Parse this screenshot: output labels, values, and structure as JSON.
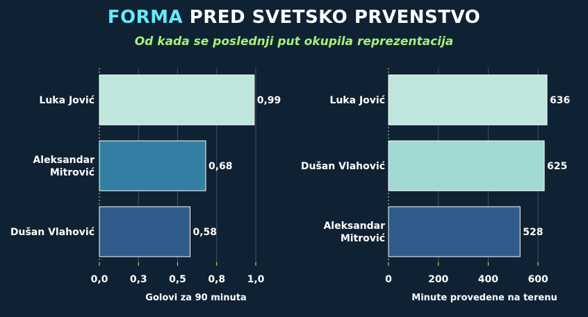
{
  "header": {
    "title_highlight": "FORMA",
    "title_rest": " PRED SVETSKO PRVENSTVO",
    "subtitle": "Od kada se poslednji put okupila reprezentacija"
  },
  "chart_data": [
    {
      "type": "bar",
      "orientation": "horizontal",
      "categories": [
        [
          "Luka Jović"
        ],
        [
          "Aleksandar",
          "Mitrović"
        ],
        [
          "Dušan Vlahović"
        ]
      ],
      "values": [
        0.99,
        0.68,
        0.58
      ],
      "value_labels": [
        "0,99",
        "0,68",
        "0,58"
      ],
      "colors": [
        "#bfe6dc",
        "#337fa3",
        "#2f5c8a"
      ],
      "xlabel": "Golovi za 90 minuta",
      "xlim": [
        0,
        1.0
      ],
      "ticks": [
        0,
        0.25,
        0.5,
        0.75,
        1.0
      ],
      "tick_labels": [
        "0,0",
        "0,3",
        "0,5",
        "0,8",
        "1,0"
      ],
      "grid": true
    },
    {
      "type": "bar",
      "orientation": "horizontal",
      "categories": [
        [
          "Luka Jović"
        ],
        [
          "Dušan Vlahović"
        ],
        [
          "Aleksandar",
          "Mitrović"
        ]
      ],
      "values": [
        636,
        625,
        528
      ],
      "value_labels": [
        "636",
        "625",
        "528"
      ],
      "colors": [
        "#bfe6dc",
        "#a2d8d4",
        "#2f5c8a"
      ],
      "xlabel": "Minute provedene na terenu",
      "xlim": [
        0,
        700
      ],
      "ticks": [
        0,
        200,
        400,
        600
      ],
      "tick_labels": [
        "0",
        "200",
        "400",
        "600"
      ],
      "grid": true
    }
  ]
}
